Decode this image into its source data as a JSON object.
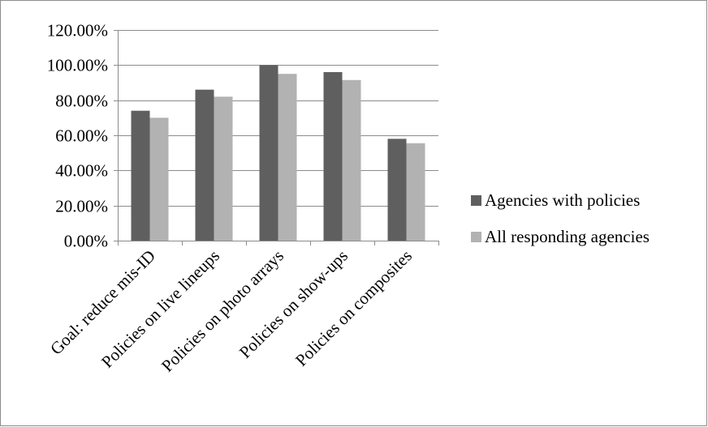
{
  "chart_data": {
    "type": "bar",
    "title": "",
    "xlabel": "",
    "ylabel": "",
    "categories": [
      "Goal: reduce mis-ID",
      "Policies on live lineups",
      "Policies on photo arrays",
      "Policies on show-ups",
      "Policies on composites"
    ],
    "series": [
      {
        "name": "Agencies with policies",
        "values": [
          74,
          86,
          100,
          96,
          58
        ],
        "color": "#5f5f5f"
      },
      {
        "name": "All responding agencies",
        "values": [
          70,
          82,
          95,
          91.5,
          55.5
        ],
        "color": "#b2b2b2"
      }
    ],
    "y_ticks": [
      0,
      20,
      40,
      60,
      80,
      100,
      120
    ],
    "y_tick_labels": [
      "0.00%",
      "20.00%",
      "40.00%",
      "60.00%",
      "80.00%",
      "100.00%",
      "120.00%"
    ],
    "ylim": [
      0,
      120
    ],
    "grid": true,
    "legend_position": "right",
    "colors": {
      "axis": "#8c8c8c",
      "grid": "#8c8c8c",
      "border": "#8c8c8c"
    }
  }
}
